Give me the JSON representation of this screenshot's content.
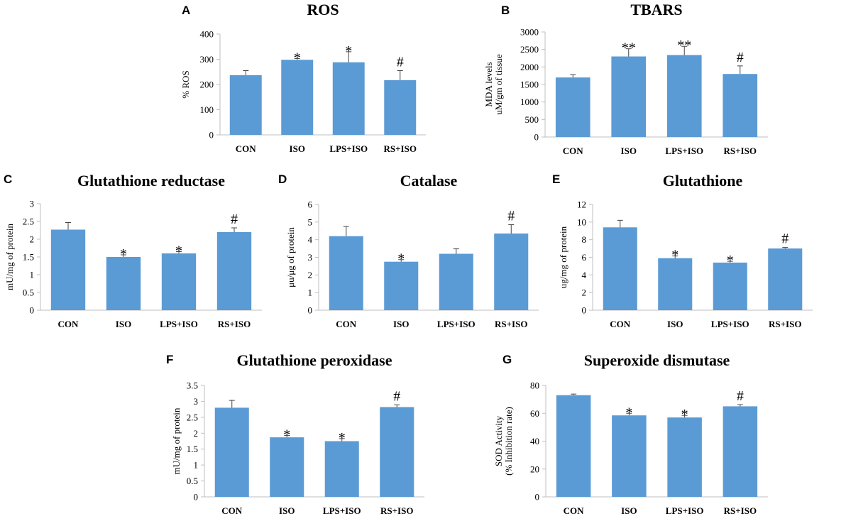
{
  "colors": {
    "bar": "#5b9bd5",
    "axis": "#bfbfbf",
    "error": "#444444"
  },
  "chart_data": [
    {
      "panel": "A",
      "type": "bar",
      "title": "ROS",
      "ylabel": [
        "% ROS"
      ],
      "categories": [
        "CON",
        "ISO",
        "LPS+ISO",
        "RS+ISO"
      ],
      "values": [
        237,
        298,
        288,
        217
      ],
      "errors": [
        18,
        5,
        42,
        38
      ],
      "significance": [
        "",
        "*",
        "*",
        "#"
      ],
      "ylim": [
        0,
        400
      ],
      "yticks": [
        0,
        100,
        200,
        300,
        400
      ],
      "ytick_labels": [
        "0",
        "100",
        "200",
        "300",
        "400"
      ]
    },
    {
      "panel": "B",
      "type": "bar",
      "title": "TBARS",
      "ylabel": [
        "MDA levels",
        "uM/gm of tissue"
      ],
      "categories": [
        "CON",
        "ISO",
        "LPS+ISO",
        "RS+ISO"
      ],
      "values": [
        1700,
        2300,
        2340,
        1800
      ],
      "errors": [
        80,
        220,
        250,
        230
      ],
      "significance": [
        "",
        "**",
        "**",
        "#"
      ],
      "ylim": [
        0,
        3000
      ],
      "yticks": [
        0,
        500,
        1000,
        1500,
        2000,
        2500,
        3000
      ],
      "ytick_labels": [
        "0",
        "500",
        "1000",
        "1500",
        "2000",
        "2500",
        "3000"
      ]
    },
    {
      "panel": "C",
      "type": "bar",
      "title": "Glutathione reductase",
      "ylabel": [
        "mU/mg of protein"
      ],
      "categories": [
        "CON",
        "ISO",
        "LPS+ISO",
        "RS+ISO"
      ],
      "values": [
        2.27,
        1.5,
        1.6,
        2.2
      ],
      "errors": [
        0.2,
        0.06,
        0.05,
        0.12
      ],
      "significance": [
        "",
        "*",
        "*",
        "#"
      ],
      "ylim": [
        0,
        3
      ],
      "yticks": [
        0,
        0.5,
        1,
        1.5,
        2,
        2.5,
        3
      ],
      "ytick_labels": [
        "0",
        "0.5",
        "1",
        "1.5",
        "2",
        "2.5",
        "3"
      ]
    },
    {
      "panel": "D",
      "type": "bar",
      "title": "Catalase",
      "ylabel": [
        "μu/μg of protein"
      ],
      "categories": [
        "CON",
        "ISO",
        "LPS+ISO",
        "RS+ISO"
      ],
      "values": [
        4.2,
        2.75,
        3.2,
        4.35
      ],
      "errors": [
        0.55,
        0.12,
        0.28,
        0.5
      ],
      "significance": [
        "",
        "*",
        "",
        "#"
      ],
      "ylim": [
        0,
        6
      ],
      "yticks": [
        0,
        1,
        2,
        3,
        4,
        5,
        6
      ],
      "ytick_labels": [
        "0",
        "1",
        "2",
        "3",
        "4",
        "5",
        "6"
      ]
    },
    {
      "panel": "E",
      "type": "bar",
      "title": "Glutathione",
      "ylabel": [
        "ug/mg of protein"
      ],
      "categories": [
        "CON",
        "ISO",
        "LPS+ISO",
        "RS+ISO"
      ],
      "values": [
        9.4,
        5.9,
        5.4,
        7.0
      ],
      "errors": [
        0.8,
        0.25,
        0.15,
        0.12
      ],
      "significance": [
        "",
        "*",
        "*",
        "#"
      ],
      "ylim": [
        0,
        12
      ],
      "yticks": [
        0,
        2,
        4,
        6,
        8,
        10,
        12
      ],
      "ytick_labels": [
        "0",
        "2",
        "4",
        "6",
        "8",
        "10",
        "12"
      ]
    },
    {
      "panel": "F",
      "type": "bar",
      "title": "Glutathione peroxidase",
      "ylabel": [
        "mU/mg of protein"
      ],
      "categories": [
        "CON",
        "ISO",
        "LPS+ISO",
        "RS+ISO"
      ],
      "values": [
        2.8,
        1.87,
        1.75,
        2.82
      ],
      "errors": [
        0.23,
        0.06,
        0.08,
        0.07
      ],
      "significance": [
        "",
        "*",
        "*",
        "#"
      ],
      "ylim": [
        0,
        3.5
      ],
      "yticks": [
        0,
        0.5,
        1,
        1.5,
        2,
        2.5,
        3,
        3.5
      ],
      "ytick_labels": [
        "0",
        "0.5",
        "1",
        "1.5",
        "2",
        "2.5",
        "3",
        "3.5"
      ]
    },
    {
      "panel": "G",
      "type": "bar",
      "title": "Superoxide dismutase",
      "ylabel": [
        "SOD Activity",
        "(% Inhibition rate)"
      ],
      "categories": [
        "CON",
        "ISO",
        "LPS+ISO",
        "RS+ISO"
      ],
      "values": [
        73,
        58.5,
        57,
        65
      ],
      "errors": [
        0.8,
        1.5,
        1.5,
        1.2
      ],
      "significance": [
        "",
        "*",
        "*",
        "#"
      ],
      "ylim": [
        0,
        80
      ],
      "yticks": [
        0,
        20,
        40,
        60,
        80
      ],
      "ytick_labels": [
        "0",
        "20",
        "40",
        "60",
        "80"
      ]
    }
  ]
}
